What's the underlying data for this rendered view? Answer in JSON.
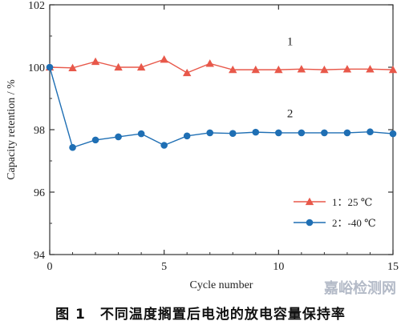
{
  "chart_data": {
    "type": "line",
    "xlabel": "Cycle number",
    "ylabel": "Capacity retention / %",
    "xlim": [
      0,
      15
    ],
    "ylim": [
      94,
      102
    ],
    "xticks": [
      0,
      5,
      10,
      15
    ],
    "yticks": [
      94,
      96,
      98,
      100,
      102
    ],
    "grid": false,
    "legend_position": "bottom-right",
    "series": [
      {
        "name": "1：25 ℃",
        "tag": "1",
        "marker": "triangle",
        "color": "#e8584a",
        "x": [
          0,
          1,
          2,
          3,
          4,
          5,
          6,
          7,
          8,
          9,
          10,
          11,
          12,
          13,
          14,
          15
        ],
        "y": [
          100.0,
          99.98,
          100.18,
          100.0,
          100.0,
          100.25,
          99.82,
          100.12,
          99.92,
          99.92,
          99.92,
          99.94,
          99.92,
          99.94,
          99.94,
          99.92
        ]
      },
      {
        "name": "2：-40 ℃",
        "tag": "2",
        "marker": "circle",
        "color": "#1f6fb4",
        "x": [
          0,
          1,
          2,
          3,
          4,
          5,
          6,
          7,
          8,
          9,
          10,
          11,
          12,
          13,
          14,
          15
        ],
        "y": [
          100.0,
          97.43,
          97.67,
          97.77,
          97.87,
          97.5,
          97.8,
          97.9,
          97.88,
          97.92,
          97.9,
          97.9,
          97.9,
          97.9,
          97.93,
          97.87
        ]
      }
    ]
  },
  "caption": {
    "figure_number": "图 1",
    "text": "不同温度搁置后电池的放电容量保持率"
  },
  "watermark": "嘉峪检测网"
}
